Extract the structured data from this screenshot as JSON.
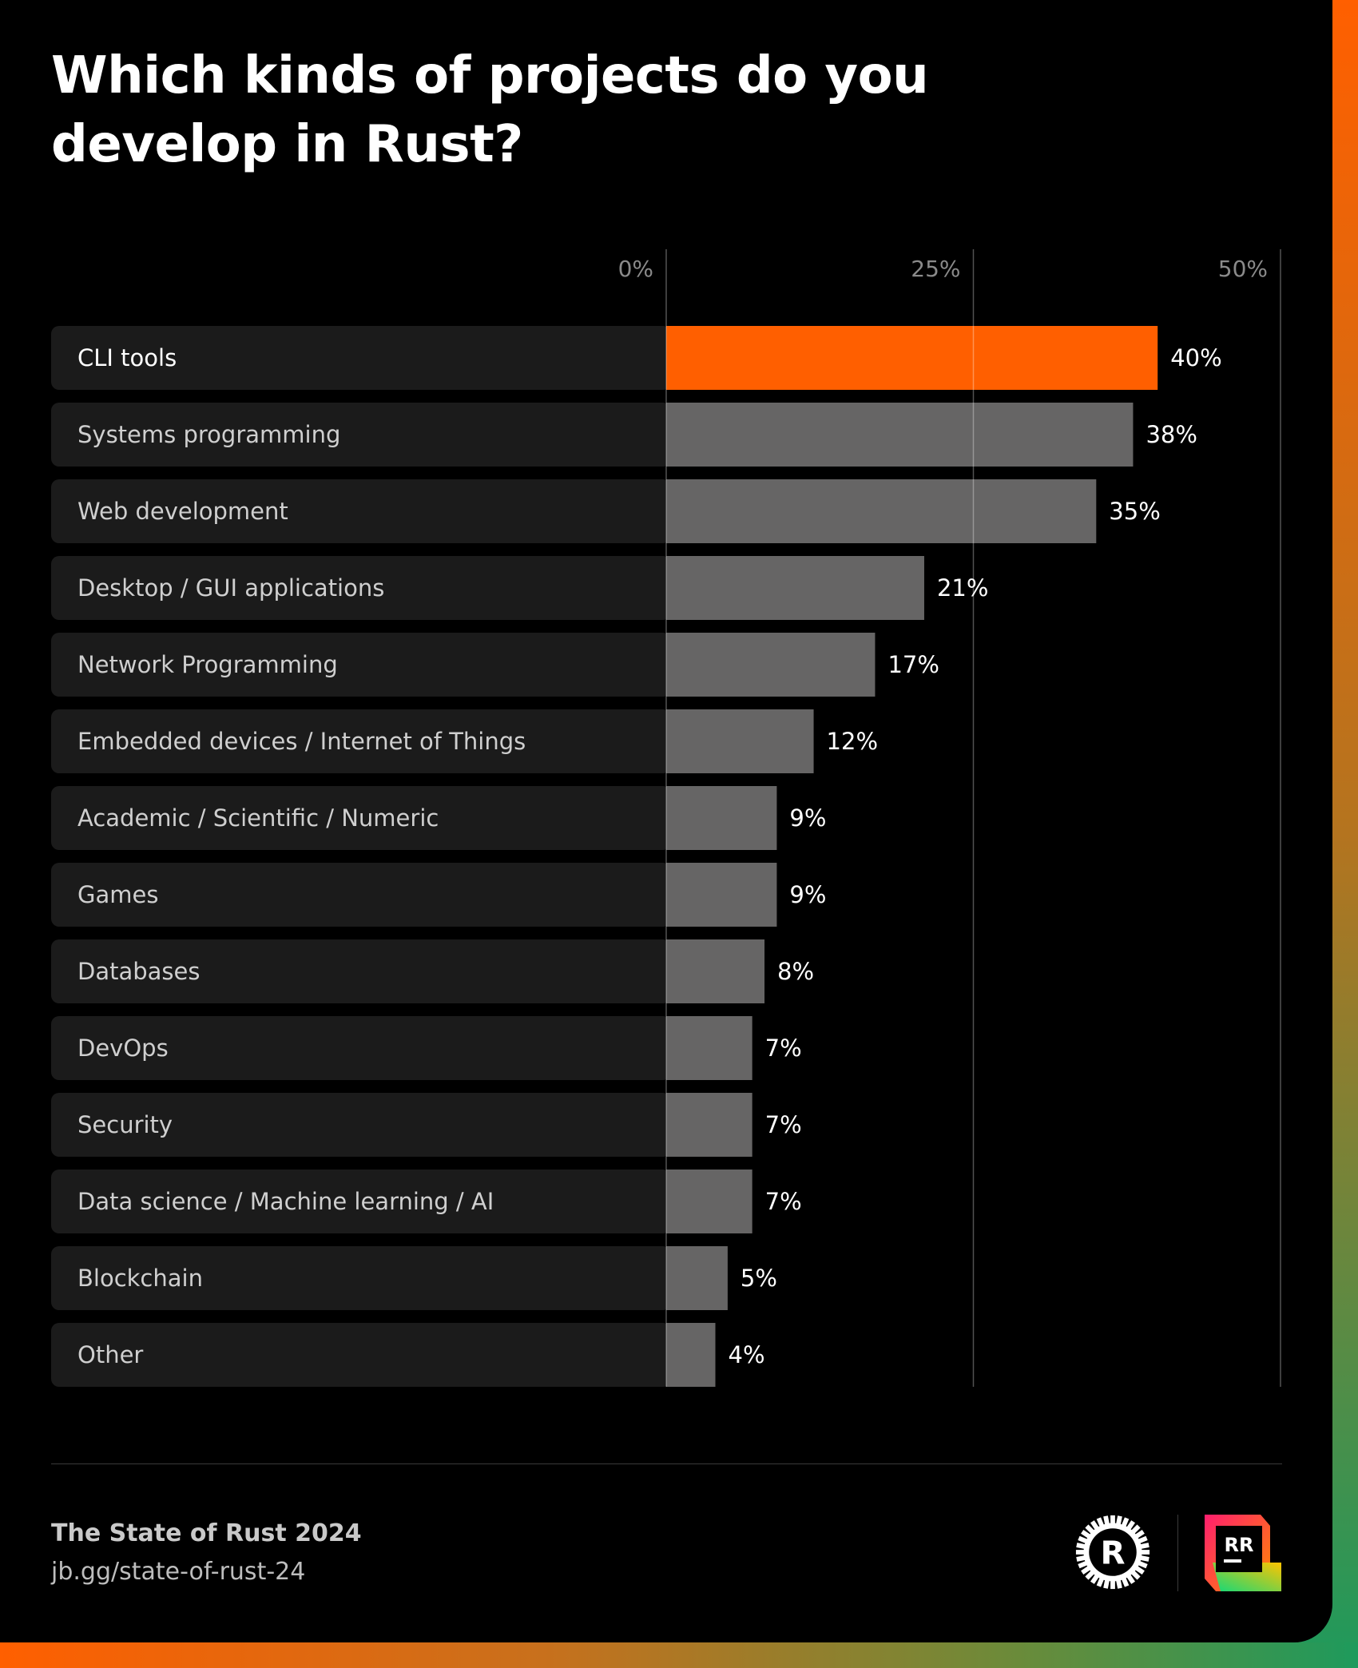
{
  "title": "Which kinds of projects do you develop in Rust?",
  "footer": {
    "title": "The State of Rust 2024",
    "url": "jb.gg/state-of-rust-24"
  },
  "logos": {
    "rust": "rust-gear-logo",
    "rustrover": "RR"
  },
  "colors": {
    "highlight": "#ff5f00",
    "bar": "#666565",
    "label_bg": "#1b1b1b"
  },
  "chart_data": {
    "type": "bar",
    "orientation": "horizontal",
    "title": "Which kinds of projects do you develop in Rust?",
    "xlim": [
      0,
      50
    ],
    "ticks": [
      "0%",
      "25%",
      "50%"
    ],
    "categories": [
      "CLI tools",
      "Systems programming",
      "Web development",
      "Desktop / GUI applications",
      "Network Programming",
      "Embedded devices / Internet of Things",
      "Academic / Scientific / Numeric",
      "Games",
      "Databases",
      "DevOps",
      "Security",
      "Data science / Machine learning / AI",
      "Blockchain",
      "Other"
    ],
    "values": [
      40,
      38,
      35,
      21,
      17,
      12,
      9,
      9,
      8,
      7,
      7,
      7,
      5,
      4
    ],
    "value_labels": [
      "40%",
      "38%",
      "35%",
      "21%",
      "17%",
      "12%",
      "9%",
      "9%",
      "8%",
      "7%",
      "7%",
      "7%",
      "5%",
      "4%"
    ],
    "highlight_index": 0,
    "grid": true
  }
}
